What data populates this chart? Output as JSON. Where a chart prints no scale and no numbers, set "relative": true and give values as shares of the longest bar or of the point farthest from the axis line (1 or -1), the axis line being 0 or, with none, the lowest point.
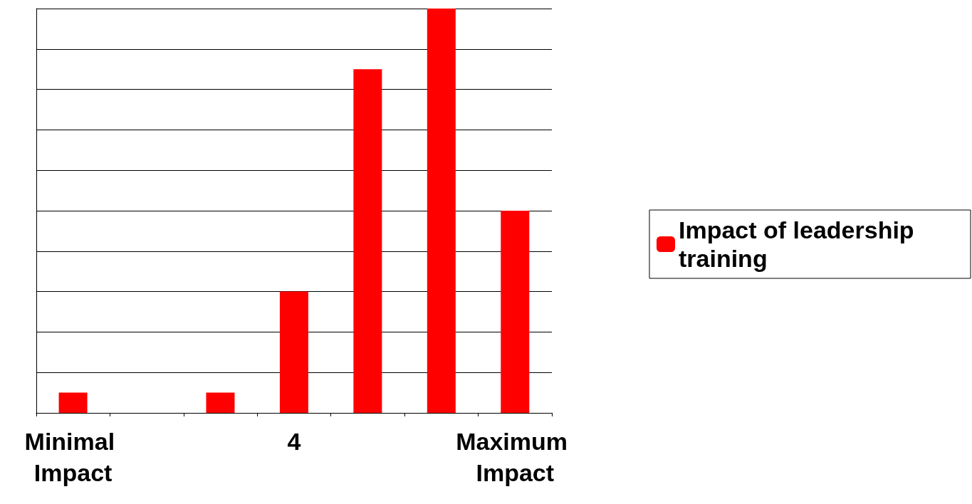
{
  "chart_data": {
    "type": "bar",
    "relative": true,
    "categories": [
      "Minimal Impact",
      null,
      null,
      "4",
      null,
      null,
      "Maximum Impact"
    ],
    "series": [
      {
        "name": "Impact of leadership training",
        "color": "#ff0000",
        "values": [
          0.05,
          0,
          0.05,
          0.3,
          0.85,
          1,
          0.5
        ]
      }
    ],
    "grid": "y",
    "legend": "right"
  }
}
